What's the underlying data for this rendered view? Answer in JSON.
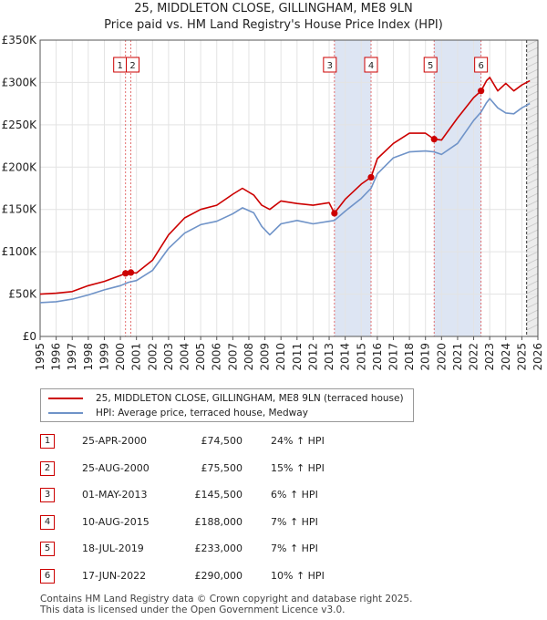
{
  "chart_data": {
    "type": "line",
    "title": "25, MIDDLETON CLOSE, GILLINGHAM, ME8 9LN",
    "subtitle": "Price paid vs. HM Land Registry's House Price Index (HPI)",
    "xlim": [
      1995,
      2026
    ],
    "ylim": [
      0,
      350000
    ],
    "y_ticks": [
      0,
      50000,
      100000,
      150000,
      200000,
      250000,
      300000,
      350000
    ],
    "y_tick_labels": [
      "£0",
      "£50K",
      "£100K",
      "£150K",
      "£200K",
      "£250K",
      "£300K",
      "£350K"
    ],
    "x_ticks": [
      1995,
      1996,
      1997,
      1998,
      1999,
      2000,
      2001,
      2002,
      2003,
      2004,
      2005,
      2006,
      2007,
      2008,
      2009,
      2010,
      2011,
      2012,
      2013,
      2014,
      2015,
      2016,
      2017,
      2018,
      2019,
      2020,
      2021,
      2022,
      2023,
      2024,
      2025,
      2026
    ],
    "grid": true,
    "shaded_ranges": [
      [
        2013.33,
        2015.61
      ],
      [
        2019.54,
        2022.46
      ]
    ],
    "projection_start": 2025.3,
    "series": [
      {
        "name": "25, MIDDLETON CLOSE, GILLINGHAM, ME8 9LN (terraced house)",
        "color": "#cc0000",
        "x": [
          1995.0,
          1996.0,
          1997.0,
          1998.0,
          1999.0,
          2000.0,
          2000.33,
          2000.65,
          2001.0,
          2002.0,
          2003.0,
          2004.0,
          2005.0,
          2006.0,
          2007.0,
          2007.6,
          2008.3,
          2008.8,
          2009.3,
          2010.0,
          2011.0,
          2012.0,
          2013.0,
          2013.33,
          2014.0,
          2015.0,
          2015.61,
          2016.0,
          2017.0,
          2018.0,
          2019.0,
          2019.54,
          2020.0,
          2021.0,
          2022.0,
          2022.46,
          2022.8,
          2023.0,
          2023.5,
          2024.0,
          2024.5,
          2025.0,
          2025.5
        ],
        "values": [
          50000,
          51000,
          53000,
          60000,
          65000,
          72000,
          74500,
          75500,
          75000,
          90000,
          120000,
          140000,
          150000,
          155000,
          168000,
          175000,
          167000,
          155000,
          150000,
          160000,
          157000,
          155000,
          158000,
          145500,
          162000,
          180000,
          188000,
          210000,
          228000,
          240000,
          240000,
          233000,
          232000,
          258000,
          282000,
          290000,
          302000,
          306000,
          290000,
          299000,
          290000,
          297000,
          302000
        ]
      },
      {
        "name": "HPI: Average price, terraced house, Medway",
        "color": "#6f93c8",
        "x": [
          1995.0,
          1996.0,
          1997.0,
          1998.0,
          1999.0,
          2000.0,
          2000.5,
          2001.0,
          2002.0,
          2003.0,
          2004.0,
          2005.0,
          2006.0,
          2007.0,
          2007.6,
          2008.3,
          2008.8,
          2009.3,
          2010.0,
          2011.0,
          2012.0,
          2013.0,
          2013.33,
          2014.0,
          2015.0,
          2015.61,
          2016.0,
          2017.0,
          2018.0,
          2019.0,
          2019.54,
          2020.0,
          2021.0,
          2022.0,
          2022.46,
          2022.8,
          2023.0,
          2023.5,
          2024.0,
          2024.5,
          2025.0,
          2025.5
        ],
        "values": [
          40000,
          41000,
          44000,
          49000,
          55000,
          60000,
          64000,
          66000,
          78000,
          104000,
          122000,
          132000,
          136000,
          145000,
          152000,
          146000,
          130000,
          120000,
          133000,
          137000,
          133000,
          136000,
          137000,
          148000,
          163000,
          175000,
          192000,
          211000,
          218000,
          219000,
          218000,
          215000,
          228000,
          255000,
          265000,
          276000,
          281000,
          270000,
          264000,
          263000,
          270000,
          275000
        ]
      }
    ],
    "transactions": [
      {
        "n": "1",
        "date": "25-APR-2000",
        "price": "£74,500",
        "hpi": "24% ↑ HPI",
        "x": 2000.32,
        "y": 74500,
        "marker_row": 0
      },
      {
        "n": "2",
        "date": "25-AUG-2000",
        "price": "£75,500",
        "hpi": "15% ↑ HPI",
        "x": 2000.65,
        "y": 75500,
        "marker_row": 0
      },
      {
        "n": "3",
        "date": "01-MAY-2013",
        "price": "£145,500",
        "hpi": "6% ↑ HPI",
        "x": 2013.33,
        "y": 145500,
        "marker_row": 0
      },
      {
        "n": "4",
        "date": "10-AUG-2015",
        "price": "£188,000",
        "hpi": "7% ↑ HPI",
        "x": 2015.61,
        "y": 188000,
        "marker_row": 0
      },
      {
        "n": "5",
        "date": "18-JUL-2019",
        "price": "£233,000",
        "hpi": "7% ↑ HPI",
        "x": 2019.54,
        "y": 233000,
        "marker_row": 0
      },
      {
        "n": "6",
        "date": "17-JUN-2022",
        "price": "£290,000",
        "hpi": "10% ↑ HPI",
        "x": 2022.46,
        "y": 290000,
        "marker_row": 0
      }
    ]
  },
  "legend": {
    "property_label": "25, MIDDLETON CLOSE, GILLINGHAM, ME8 9LN (terraced house)",
    "hpi_label": "HPI: Average price, terraced house, Medway"
  },
  "footer": {
    "line1": "Contains HM Land Registry data © Crown copyright and database right 2025.",
    "line2": "This data is licensed under the Open Government Licence v3.0."
  }
}
